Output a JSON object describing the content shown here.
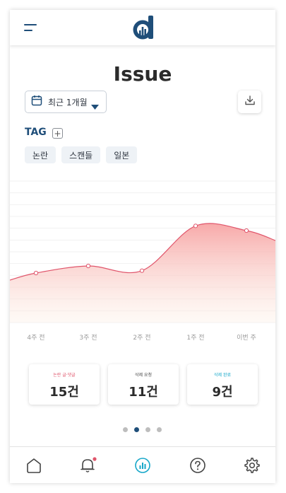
{
  "header": {
    "menu_icon": "menu-icon",
    "logo_icon": "app-logo"
  },
  "page": {
    "title": "Issue"
  },
  "filter": {
    "range_label": "최근 1개월",
    "calendar_icon": "calendar-icon",
    "caret_icon": "caret-down-icon",
    "download_icon": "download-icon"
  },
  "tags": {
    "label": "TAG",
    "add_symbol": "+",
    "items": [
      "논란",
      "스캔들",
      "일본"
    ]
  },
  "colors": {
    "brand": "#1f4e79",
    "line": "#e0556b",
    "fill_top": "#f7a9a9",
    "fill_bottom": "#fdf1e8",
    "controversy": "#e0556b",
    "deleted": "#16a7c9",
    "alert_badge": "#e0556b"
  },
  "chart_data": {
    "type": "area",
    "categories": [
      "4주 전",
      "3주 전",
      "2주 전",
      "1주 전",
      "이번 주"
    ],
    "series": [
      {
        "values": [
          41,
          44,
          42,
          61,
          59
        ]
      }
    ],
    "ylim": [
      20,
      80
    ],
    "grid": true
  },
  "stats": [
    {
      "caption": "논란 글·댓글",
      "value": "15건",
      "caption_color": "#e0556b"
    },
    {
      "caption": "삭제 요청",
      "value": "11건",
      "caption_color": "#444444"
    },
    {
      "caption": "삭제 완료",
      "value": "9건",
      "caption_color": "#16a7c9"
    }
  ],
  "pager": {
    "count": 4,
    "active": 1
  },
  "nav": {
    "items": [
      "home-icon",
      "bell-icon",
      "chart-icon",
      "help-icon",
      "settings-icon"
    ],
    "active": "chart-icon"
  }
}
